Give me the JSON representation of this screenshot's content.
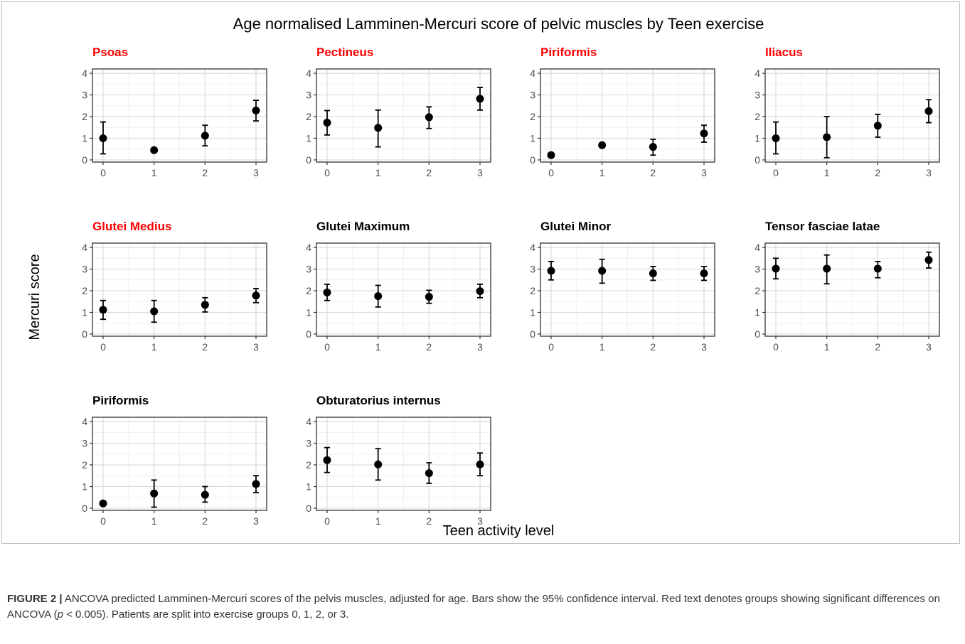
{
  "figure": {
    "title": "Age normalised Lamminen-Mercuri score of pelvic muscles by Teen exercise",
    "ylabel": "Mercuri score",
    "xlabel": "Teen activity level",
    "significant_color": "#ff0000",
    "normal_color": "#000000"
  },
  "caption": {
    "label": "FIGURE 2 |",
    "text_a": " ANCOVA predicted Lamminen-Mercuri scores of the pelvis muscles, adjusted for age. Bars show the 95% confidence interval. Red text denotes groups showing significant differences on ANCOVA (",
    "p_symbol": "p",
    "text_b": " < 0.005). Patients are split into exercise groups 0, 1, 2, or 3."
  },
  "chart_data": [
    {
      "type": "scatter",
      "title": "Psoas",
      "significant": true,
      "x": [
        0,
        1,
        2,
        3
      ],
      "y": [
        1.0,
        0.45,
        1.12,
        2.28
      ],
      "ci_low": [
        0.28,
        0.38,
        0.65,
        1.8
      ],
      "ci_high": [
        1.75,
        0.52,
        1.6,
        2.75
      ],
      "xticks": [
        0,
        1,
        2,
        3
      ],
      "yticks": [
        0,
        1,
        2,
        3,
        4
      ],
      "ylim": [
        -0.1,
        4.2
      ]
    },
    {
      "type": "scatter",
      "title": "Pectineus",
      "significant": true,
      "x": [
        0,
        1,
        2,
        3
      ],
      "y": [
        1.72,
        1.48,
        1.97,
        2.82
      ],
      "ci_low": [
        1.15,
        0.6,
        1.45,
        2.3
      ],
      "ci_high": [
        2.28,
        2.3,
        2.45,
        3.35
      ],
      "xticks": [
        0,
        1,
        2,
        3
      ],
      "yticks": [
        0,
        1,
        2,
        3,
        4
      ],
      "ylim": [
        -0.1,
        4.2
      ]
    },
    {
      "type": "scatter",
      "title": "Piriformis",
      "significant": true,
      "x": [
        0,
        1,
        2,
        3
      ],
      "y": [
        0.22,
        0.68,
        0.6,
        1.22
      ],
      "ci_low": [
        0.15,
        0.6,
        0.22,
        0.82
      ],
      "ci_high": [
        0.3,
        0.76,
        0.95,
        1.6
      ],
      "xticks": [
        0,
        1,
        2,
        3
      ],
      "yticks": [
        0,
        1,
        2,
        3,
        4
      ],
      "ylim": [
        -0.1,
        4.2
      ]
    },
    {
      "type": "scatter",
      "title": "Iliacus",
      "significant": true,
      "x": [
        0,
        1,
        2,
        3
      ],
      "y": [
        1.0,
        1.05,
        1.58,
        2.25
      ],
      "ci_low": [
        0.28,
        0.1,
        1.05,
        1.72
      ],
      "ci_high": [
        1.75,
        2.0,
        2.1,
        2.78
      ],
      "xticks": [
        0,
        1,
        2,
        3
      ],
      "yticks": [
        0,
        1,
        2,
        3,
        4
      ],
      "ylim": [
        -0.1,
        4.2
      ]
    },
    {
      "type": "scatter",
      "title": "Glutei Medius",
      "significant": true,
      "x": [
        0,
        1,
        2,
        3
      ],
      "y": [
        1.12,
        1.05,
        1.35,
        1.78
      ],
      "ci_low": [
        0.68,
        0.55,
        1.02,
        1.45
      ],
      "ci_high": [
        1.55,
        1.55,
        1.68,
        2.1
      ],
      "xticks": [
        0,
        1,
        2,
        3
      ],
      "yticks": [
        0,
        1,
        2,
        3,
        4
      ],
      "ylim": [
        -0.1,
        4.2
      ]
    },
    {
      "type": "scatter",
      "title": "Glutei Maximum",
      "significant": false,
      "x": [
        0,
        1,
        2,
        3
      ],
      "y": [
        1.92,
        1.75,
        1.72,
        1.98
      ],
      "ci_low": [
        1.55,
        1.25,
        1.42,
        1.68
      ],
      "ci_high": [
        2.3,
        2.25,
        2.02,
        2.3
      ],
      "xticks": [
        0,
        1,
        2,
        3
      ],
      "yticks": [
        0,
        1,
        2,
        3,
        4
      ],
      "ylim": [
        -0.1,
        4.2
      ]
    },
    {
      "type": "scatter",
      "title": "Glutei Minor",
      "significant": false,
      "x": [
        0,
        1,
        2,
        3
      ],
      "y": [
        2.92,
        2.92,
        2.8,
        2.8
      ],
      "ci_low": [
        2.5,
        2.35,
        2.48,
        2.48
      ],
      "ci_high": [
        3.35,
        3.45,
        3.12,
        3.12
      ],
      "xticks": [
        0,
        1,
        2,
        3
      ],
      "yticks": [
        0,
        1,
        2,
        3,
        4
      ],
      "ylim": [
        -0.1,
        4.2
      ]
    },
    {
      "type": "scatter",
      "title": "Tensor fasciae latae",
      "significant": false,
      "x": [
        0,
        1,
        2,
        3
      ],
      "y": [
        3.02,
        3.02,
        3.02,
        3.42
      ],
      "ci_low": [
        2.55,
        2.32,
        2.6,
        3.05
      ],
      "ci_high": [
        3.5,
        3.65,
        3.35,
        3.78
      ],
      "xticks": [
        0,
        1,
        2,
        3
      ],
      "yticks": [
        0,
        1,
        2,
        3,
        4
      ],
      "ylim": [
        -0.1,
        4.2
      ]
    },
    {
      "type": "scatter",
      "title": "Piriformis",
      "significant": false,
      "x": [
        0,
        1,
        2,
        3
      ],
      "y": [
        0.22,
        0.68,
        0.62,
        1.12
      ],
      "ci_low": [
        0.15,
        0.05,
        0.28,
        0.72
      ],
      "ci_high": [
        0.3,
        1.3,
        1.0,
        1.5
      ],
      "xticks": [
        0,
        1,
        2,
        3
      ],
      "yticks": [
        0,
        1,
        2,
        3,
        4
      ],
      "ylim": [
        -0.1,
        4.2
      ]
    },
    {
      "type": "scatter",
      "title": "Obturatorius internus",
      "significant": false,
      "x": [
        0,
        1,
        2,
        3
      ],
      "y": [
        2.22,
        2.02,
        1.62,
        2.02
      ],
      "ci_low": [
        1.65,
        1.3,
        1.15,
        1.5
      ],
      "ci_high": [
        2.8,
        2.75,
        2.1,
        2.55
      ],
      "xticks": [
        0,
        1,
        2,
        3
      ],
      "yticks": [
        0,
        1,
        2,
        3,
        4
      ],
      "ylim": [
        -0.1,
        4.2
      ]
    }
  ]
}
